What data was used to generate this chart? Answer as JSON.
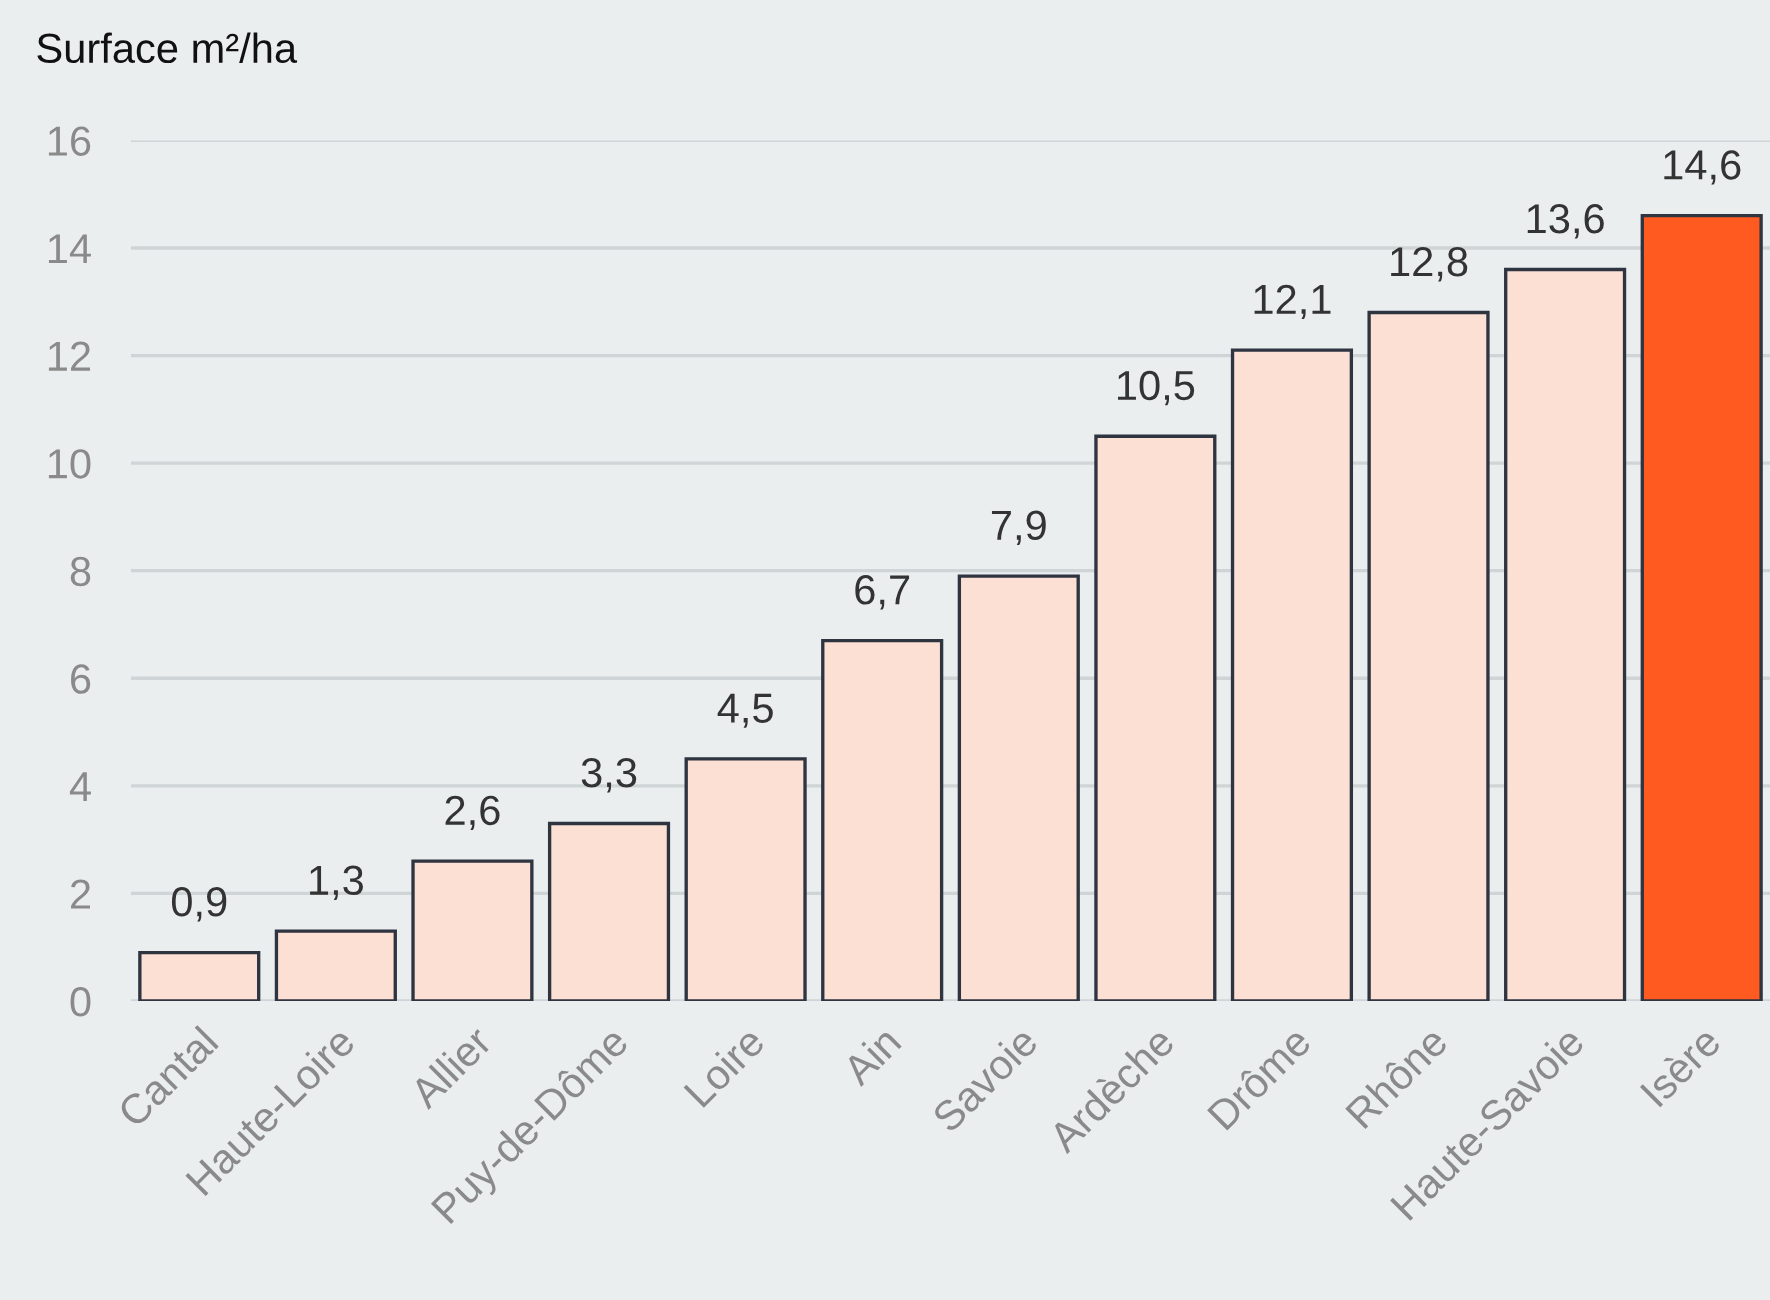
{
  "chart_data": {
    "type": "bar",
    "ylabel": "Surface m²/ha",
    "categories": [
      "Cantal",
      "Haute-Loire",
      "Allier",
      "Puy-de-Dôme",
      "Loire",
      "Ain",
      "Savoie",
      "Ardèche",
      "Drôme",
      "Rhône",
      "Haute-Savoie",
      "Isère"
    ],
    "values": [
      0.9,
      1.3,
      2.6,
      3.3,
      4.5,
      6.7,
      7.9,
      10.5,
      12.1,
      12.8,
      13.6,
      14.6
    ],
    "colors": [
      "#fde0d4",
      "#fde0d4",
      "#fde0d4",
      "#fde0d4",
      "#fde0d4",
      "#fde0d4",
      "#fde0d4",
      "#fde0d4",
      "#fde0d4",
      "#fde0d4",
      "#fde0d4",
      "#ff5a1f"
    ],
    "value_labels": [
      "0,9",
      "1,3",
      "2,6",
      "3,3",
      "4,5",
      "6,7",
      "7,9",
      "10,5",
      "12,1",
      "12,8",
      "13,6",
      "14,6"
    ],
    "ylim": [
      0,
      16
    ],
    "yticks": [
      0,
      2,
      4,
      6,
      8,
      10,
      12,
      14,
      16
    ],
    "grid": "y"
  }
}
